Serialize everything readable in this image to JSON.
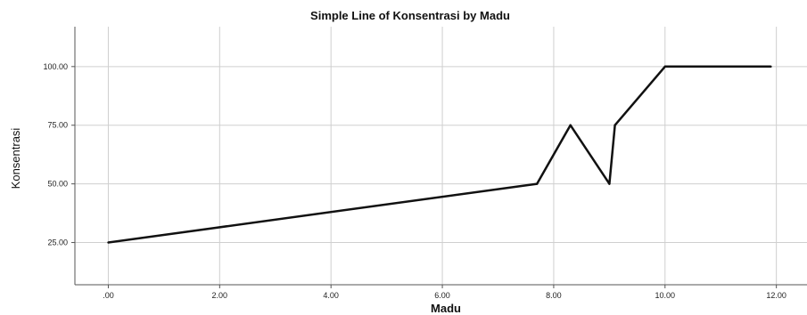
{
  "chart_data": {
    "type": "line",
    "title": "Simple Line of Konsentrasi by Madu",
    "xlabel": "Madu",
    "ylabel": "Konsentrasi",
    "xlim": [
      -0.6,
      12.55
    ],
    "ylim": [
      7,
      117
    ],
    "x_ticks": [
      0,
      2,
      4,
      6,
      8,
      10,
      12
    ],
    "x_tick_labels": [
      ".00",
      "2.00",
      "4.00",
      "6.00",
      "8.00",
      "10.00",
      "12.00"
    ],
    "y_ticks": [
      25,
      50,
      75,
      100
    ],
    "y_tick_labels": [
      "25.00",
      "50.00",
      "75.00",
      "100.00"
    ],
    "grid": true,
    "legend": "none",
    "series": [
      {
        "color": "#111111",
        "x": [
          0,
          7.7,
          8.3,
          9.0,
          9.1,
          10.0,
          11.9
        ],
        "y": [
          25,
          50,
          75,
          50,
          75,
          100,
          100
        ]
      }
    ]
  }
}
